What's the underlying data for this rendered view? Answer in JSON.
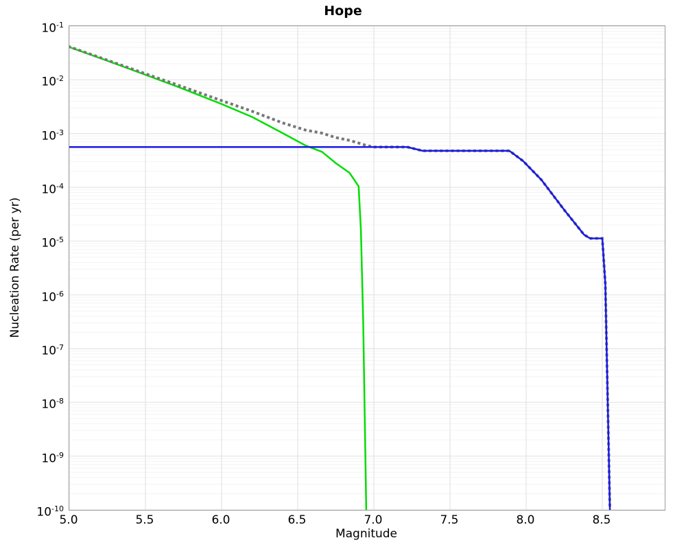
{
  "title": "Hope",
  "axes": {
    "xlabel": "Magnitude",
    "ylabel": "Nucleation Rate (per yr)"
  },
  "colors": {
    "green_line": "#00dd00",
    "blue_line": "#1a1ae6",
    "dotted_line": "#777777",
    "grid_major": "#e3e3e3",
    "grid_minor": "#f3f3f3",
    "frame": "#9a9a9a",
    "text": "#000000",
    "background": "#ffffff"
  },
  "chart_data": {
    "type": "line",
    "title": "Hope",
    "xlabel": "Magnitude",
    "ylabel": "Nucleation Rate (per yr)",
    "x_range": [
      5.0,
      8.91
    ],
    "y_scale": "log",
    "y_exponent_range": [
      -1,
      -10
    ],
    "x_ticks": [
      5.0,
      5.5,
      6.0,
      6.5,
      7.0,
      7.5,
      8.0,
      8.5
    ],
    "y_tick_exponents": [
      -1,
      -2,
      -3,
      -4,
      -5,
      -6,
      -7,
      -8,
      -9,
      -10
    ],
    "grid": {
      "vertical_major": true,
      "horizontal_major": true,
      "horizontal_log_minor": true
    },
    "legend": null,
    "series": [
      {
        "name": "green-line",
        "color": "#00dd00",
        "style": "solid",
        "width": 2.5,
        "points_log10": [
          [
            5.0,
            -1.39
          ],
          [
            5.25,
            -1.645
          ],
          [
            5.5,
            -1.905
          ],
          [
            5.75,
            -2.17
          ],
          [
            6.0,
            -2.45
          ],
          [
            6.2,
            -2.69
          ],
          [
            6.4,
            -2.99
          ],
          [
            6.55,
            -3.22
          ],
          [
            6.66,
            -3.34
          ],
          [
            6.75,
            -3.55
          ],
          [
            6.84,
            -3.73
          ],
          [
            6.9,
            -3.98
          ],
          [
            6.915,
            -4.8
          ],
          [
            6.93,
            -6.5
          ],
          [
            6.95,
            -10.0
          ]
        ]
      },
      {
        "name": "gray-dotted-line",
        "color": "#777777",
        "style": "dotted",
        "width": 4,
        "points_log10": [
          [
            5.0,
            -1.384
          ],
          [
            5.25,
            -1.634
          ],
          [
            5.5,
            -1.886
          ],
          [
            5.75,
            -2.135
          ],
          [
            6.0,
            -2.386
          ],
          [
            6.2,
            -2.584
          ],
          [
            6.4,
            -2.8
          ],
          [
            6.55,
            -2.934
          ],
          [
            6.66,
            -2.992
          ],
          [
            6.75,
            -3.074
          ],
          [
            6.84,
            -3.126
          ],
          [
            6.9,
            -3.176
          ],
          [
            6.95,
            -3.22
          ],
          [
            7.0,
            -3.25
          ],
          [
            7.22,
            -3.25
          ],
          [
            7.32,
            -3.32
          ],
          [
            7.89,
            -3.32
          ],
          [
            7.98,
            -3.51
          ],
          [
            8.1,
            -3.86
          ],
          [
            8.25,
            -4.42
          ],
          [
            8.38,
            -4.88
          ],
          [
            8.42,
            -4.95
          ],
          [
            8.5,
            -4.95
          ],
          [
            8.52,
            -5.8
          ],
          [
            8.55,
            -10.0
          ]
        ]
      },
      {
        "name": "blue-line",
        "color": "#1a1ae6",
        "style": "solid",
        "width": 2.5,
        "points_log10": [
          [
            5.0,
            -3.25
          ],
          [
            7.22,
            -3.25
          ],
          [
            7.32,
            -3.32
          ],
          [
            7.89,
            -3.32
          ],
          [
            7.98,
            -3.51
          ],
          [
            8.1,
            -3.86
          ],
          [
            8.25,
            -4.42
          ],
          [
            8.38,
            -4.88
          ],
          [
            8.42,
            -4.95
          ],
          [
            8.5,
            -4.95
          ],
          [
            8.52,
            -5.8
          ],
          [
            8.55,
            -10.0
          ]
        ]
      }
    ]
  }
}
